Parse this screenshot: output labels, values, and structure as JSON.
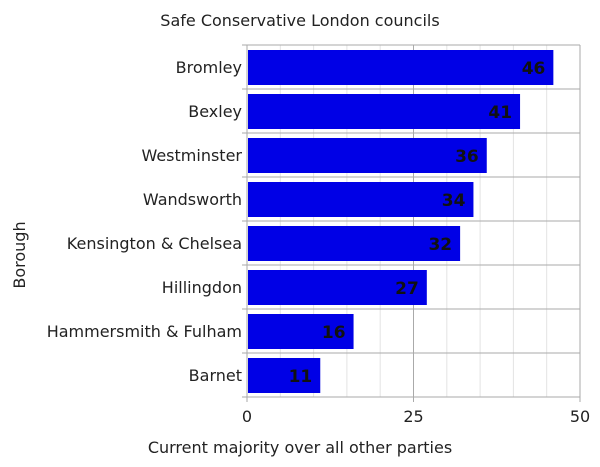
{
  "chart_data": {
    "type": "bar",
    "orientation": "horizontal",
    "title": "Safe Conservative London councils",
    "xlabel": "Current majority over all other parties",
    "ylabel": "Borough",
    "categories": [
      "Bromley",
      "Bexley",
      "Westminster",
      "Wandsworth",
      "Kensington & Chelsea",
      "Hillingdon",
      "Hammersmith & Fulham",
      "Barnet"
    ],
    "values": [
      46,
      41,
      36,
      34,
      32,
      27,
      16,
      11
    ],
    "xlim": [
      0,
      50
    ],
    "xticks": [
      0,
      25,
      50
    ],
    "minor_step": 5,
    "grid": true,
    "bar_color": "#0000e6",
    "label_color": "#111111"
  }
}
